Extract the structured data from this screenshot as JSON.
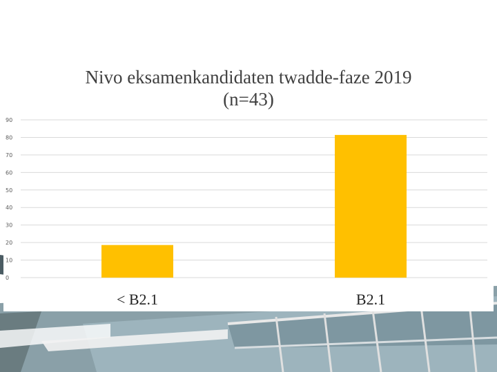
{
  "chart_data": {
    "type": "bar",
    "title": "Nivo eksamenkandidaten twadde-faze 2019\n(n=43)",
    "categories": [
      "< B2.1",
      "B2.1"
    ],
    "series": [
      {
        "values": [
          18.6,
          81.4
        ]
      }
    ],
    "ylim": [
      0,
      90
    ],
    "yticks": [
      "0",
      "10",
      "20",
      "30",
      "40",
      "50",
      "60",
      "70",
      "80",
      "90"
    ],
    "xlabel": "",
    "ylabel": "",
    "grid": true,
    "legend": "none",
    "bar_color": "#FFC000"
  },
  "colors": {
    "grid": "#d9d9d9",
    "background_photo": "building-facade-photo"
  }
}
